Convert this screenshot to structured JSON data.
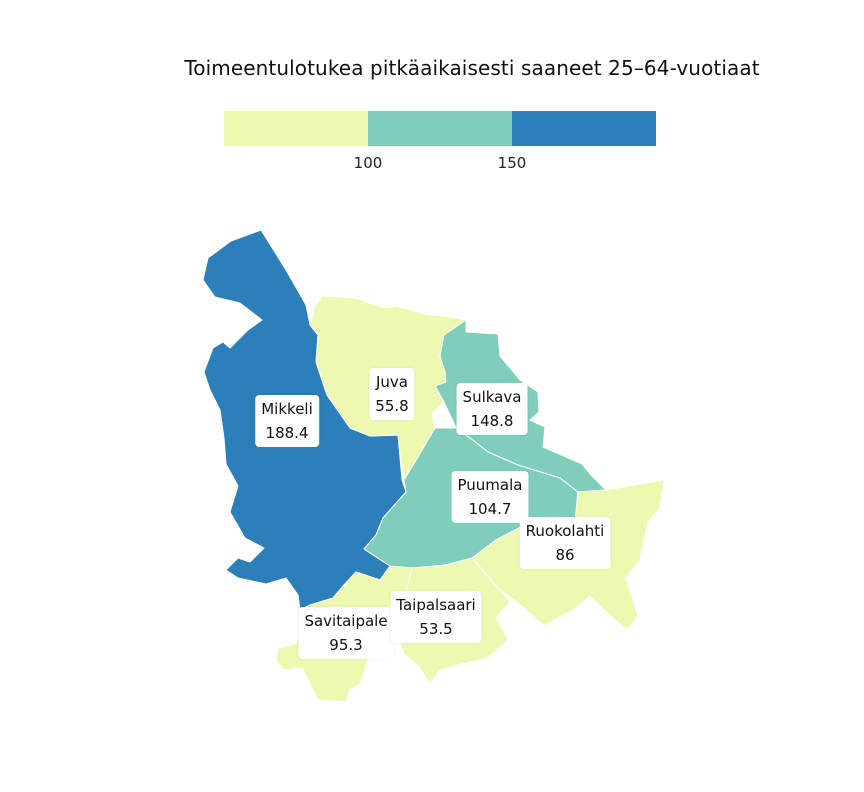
{
  "title": "Toimeentulotukea pitkäaikaisesti saaneet 25–64-vuotiaat",
  "legend": {
    "colors": [
      "#edf8b1",
      "#7fcdbb",
      "#2c7fb8"
    ],
    "thresholds": [
      "100",
      "150"
    ]
  },
  "regions": [
    {
      "name": "Mikkeli",
      "value": "188.4",
      "color": "#2c7fb8"
    },
    {
      "name": "Juva",
      "value": "55.8",
      "color": "#edf8b1"
    },
    {
      "name": "Sulkava",
      "value": "148.8",
      "color": "#7fcdbb"
    },
    {
      "name": "Puumala",
      "value": "104.7",
      "color": "#7fcdbb"
    },
    {
      "name": "Ruokolahti",
      "value": "86",
      "color": "#edf8b1"
    },
    {
      "name": "Savitaipale",
      "value": "95.3",
      "color": "#edf8b1"
    },
    {
      "name": "Taipalsaari",
      "value": "53.5",
      "color": "#edf8b1"
    }
  ]
}
